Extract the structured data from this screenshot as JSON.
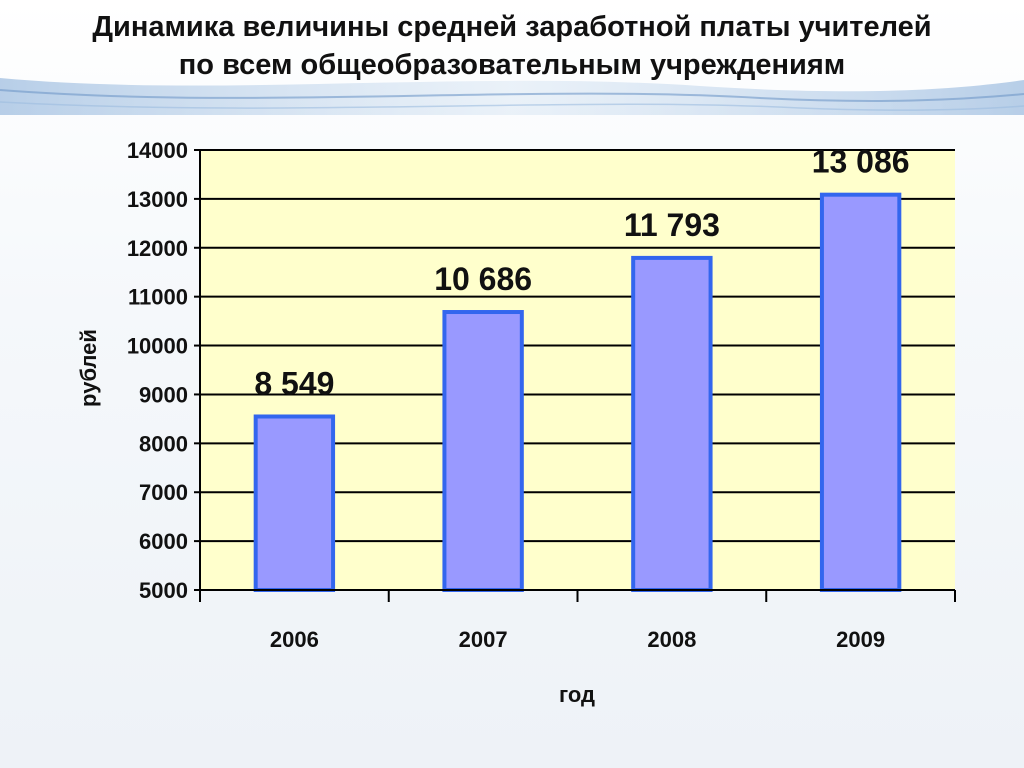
{
  "title_lines": [
    "Динамика величины средней заработной платы учителей",
    "по всем общеобразовательным учреждениям"
  ],
  "colors": {
    "plot_background": "#FFFFCC",
    "bar_fill": "#9999FF",
    "bar_stroke": "#3366EE",
    "gridline": "#000000",
    "title_band_accent": "#A9C6E6"
  },
  "chart_data": {
    "type": "bar",
    "categories": [
      "2006",
      "2007",
      "2008",
      "2009"
    ],
    "values": [
      8549,
      10686,
      11793,
      13086
    ],
    "data_labels": [
      "8 549",
      "10 686",
      "11 793",
      "13 086"
    ],
    "xlabel": "год",
    "ylabel": "рублей",
    "ylim": [
      5000,
      14000
    ],
    "y_ticks": [
      5000,
      6000,
      7000,
      8000,
      9000,
      10000,
      11000,
      12000,
      13000,
      14000
    ],
    "grid": true,
    "legend": "none"
  }
}
